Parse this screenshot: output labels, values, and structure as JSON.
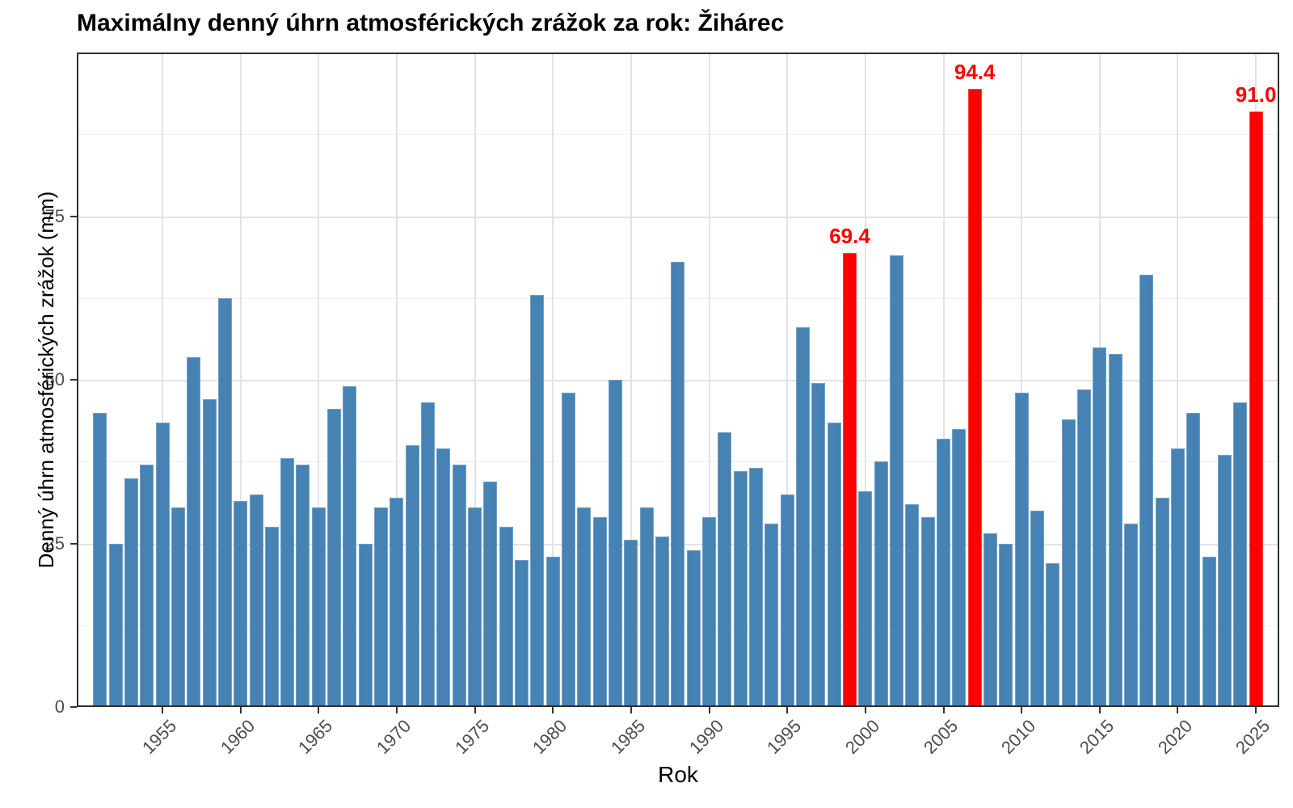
{
  "title": "Maximálny denný úhrn atmosférických zrážok za rok: Žihárec",
  "chart_data": {
    "type": "bar",
    "title": "Maximálny denný úhrn atmosférických zrážok za rok: Žihárec",
    "xlabel": "Rok",
    "ylabel": "Denný úhrn atmosférických zrážok (mm)",
    "ylim": [
      0,
      100
    ],
    "yticks": [
      0,
      25,
      50,
      75
    ],
    "yticks_minor": [
      12.5,
      37.5,
      62.5,
      87.5
    ],
    "xticks": [
      1955,
      1960,
      1965,
      1970,
      1975,
      1980,
      1985,
      1990,
      1995,
      2000,
      2005,
      2010,
      2015,
      2020,
      2025
    ],
    "grid": "horizontal major+minor, vertical major; light gray on white; dark panel border",
    "legend": "none",
    "bar_color": "#4682B4",
    "highlight_color": "#FF0000",
    "years": [
      1951,
      1952,
      1953,
      1954,
      1955,
      1956,
      1957,
      1958,
      1959,
      1960,
      1961,
      1962,
      1963,
      1964,
      1965,
      1966,
      1967,
      1968,
      1969,
      1970,
      1971,
      1972,
      1973,
      1974,
      1975,
      1976,
      1977,
      1978,
      1979,
      1980,
      1981,
      1982,
      1983,
      1984,
      1985,
      1986,
      1987,
      1988,
      1989,
      1990,
      1991,
      1992,
      1993,
      1994,
      1995,
      1996,
      1997,
      1998,
      1999,
      2000,
      2001,
      2002,
      2003,
      2004,
      2005,
      2006,
      2007,
      2008,
      2009,
      2010,
      2011,
      2012,
      2013,
      2014,
      2015,
      2016,
      2017,
      2018,
      2019,
      2020,
      2021,
      2022,
      2023,
      2024,
      2025
    ],
    "values": [
      45,
      25,
      35,
      37,
      43.5,
      30.5,
      53.5,
      47,
      62.5,
      31.5,
      32.5,
      27.5,
      38,
      37,
      30.5,
      45.5,
      49,
      25,
      30.5,
      32,
      40,
      46.5,
      39.5,
      37,
      30.5,
      34.5,
      27.5,
      22.5,
      63,
      23,
      48,
      30.5,
      29,
      50,
      25.5,
      30.5,
      26,
      68,
      24,
      29,
      42,
      36,
      36.5,
      28,
      32.5,
      58,
      49.5,
      43.5,
      69.4,
      33,
      37.5,
      69,
      31,
      29,
      41,
      42.5,
      94.4,
      26.5,
      25,
      48,
      30,
      22,
      44,
      48.5,
      55,
      54,
      28,
      66,
      32,
      39.5,
      45,
      23,
      38.5,
      46.5,
      91
    ],
    "highlights": [
      {
        "year": 1999,
        "value": 69.4,
        "label": "69.4"
      },
      {
        "year": 2007,
        "value": 94.4,
        "label": "94.4"
      },
      {
        "year": 2025,
        "value": 91.0,
        "label": "91.0"
      }
    ]
  }
}
